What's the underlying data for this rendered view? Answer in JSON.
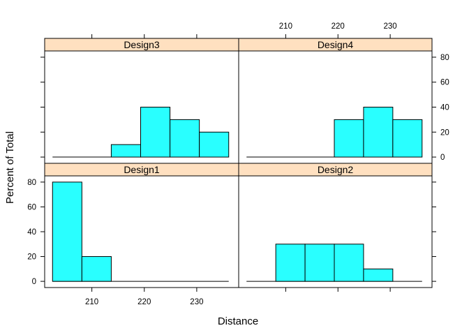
{
  "chart_data": {
    "type": "histogram",
    "layout": "lattice 2x2",
    "xlabel": "Distance",
    "ylabel": "Percent of Total",
    "xlim": [
      201,
      238
    ],
    "ylim": [
      -5,
      85
    ],
    "x_ticks": [
      210,
      220,
      230
    ],
    "y_ticks": [
      0,
      20,
      40,
      60,
      80
    ],
    "bar_color": "#29FFFF",
    "strip_color": "#FFE0C0",
    "bin_edges": [
      202.5,
      208.1,
      213.7,
      219.3,
      224.9,
      230.5,
      236.1
    ],
    "panels": [
      {
        "name": "Design1",
        "row": "bottom",
        "col": "left",
        "values": [
          80,
          20,
          0,
          0,
          0,
          0
        ]
      },
      {
        "name": "Design2",
        "row": "bottom",
        "col": "right",
        "values": [
          0,
          30,
          30,
          30,
          10,
          0
        ]
      },
      {
        "name": "Design3",
        "row": "top",
        "col": "left",
        "values": [
          0,
          0,
          10,
          40,
          30,
          20
        ]
      },
      {
        "name": "Design4",
        "row": "top",
        "col": "right",
        "values": [
          0,
          0,
          0,
          30,
          40,
          30
        ]
      }
    ]
  }
}
